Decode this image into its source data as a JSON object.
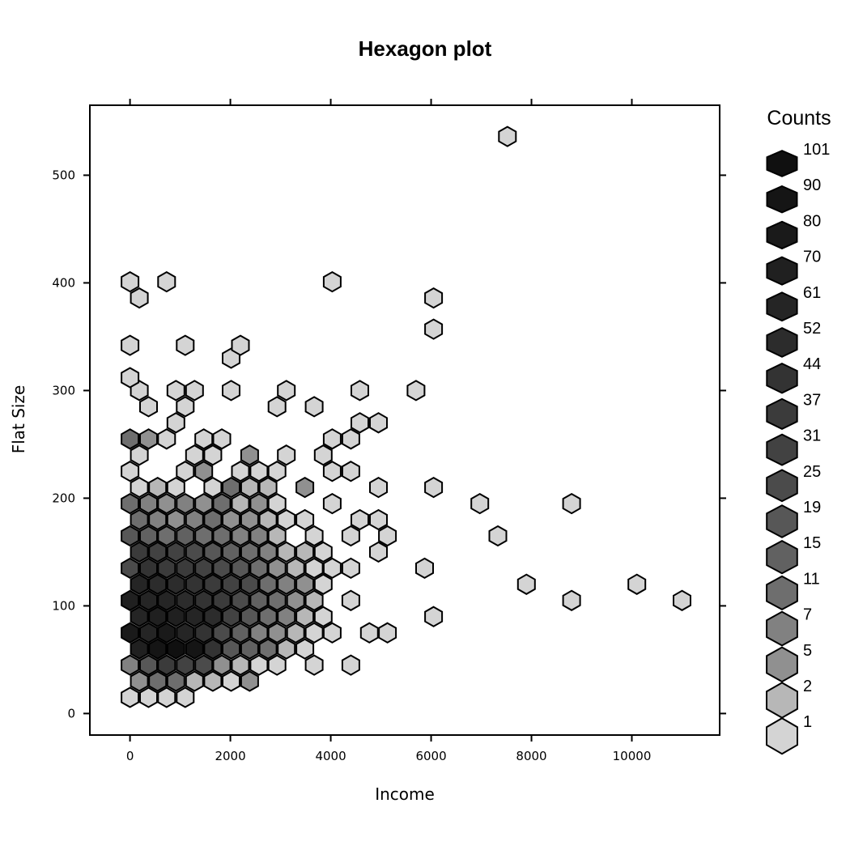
{
  "chart_data": {
    "type": "hexbin",
    "title": "Hexagon plot",
    "xlabel": "Income",
    "ylabel": "Flat Size",
    "xlim": [
      -800,
      11750
    ],
    "ylim": [
      -20,
      565
    ],
    "x_ticks": [
      0,
      2000,
      4000,
      6000,
      8000,
      10000
    ],
    "y_ticks": [
      0,
      100,
      200,
      300,
      400,
      500
    ],
    "x_tick_labels": [
      "0",
      "2000",
      "4000",
      "6000",
      "8000",
      "10000"
    ],
    "y_tick_labels": [
      "0",
      "100",
      "200",
      "300",
      "400",
      "500"
    ],
    "legend": {
      "title": "Counts",
      "placement": "right",
      "levels": [
        "101",
        "90",
        "80",
        "70",
        "61",
        "52",
        "44",
        "37",
        "31",
        "25",
        "19",
        "15",
        "11",
        "7",
        "5",
        "2",
        "1"
      ]
    },
    "cells": [
      [
        0,
        15,
        1
      ],
      [
        370,
        15,
        1
      ],
      [
        730,
        15,
        1
      ],
      [
        1100,
        15,
        1
      ],
      [
        0,
        45,
        7
      ],
      [
        370,
        45,
        19
      ],
      [
        730,
        45,
        37
      ],
      [
        1100,
        45,
        31
      ],
      [
        1470,
        45,
        25
      ],
      [
        1830,
        45,
        5
      ],
      [
        2200,
        45,
        2
      ],
      [
        2570,
        45,
        1
      ],
      [
        2930,
        45,
        1
      ],
      [
        3670,
        45,
        1
      ],
      [
        4400,
        45,
        1
      ],
      [
        185,
        30,
        5
      ],
      [
        550,
        30,
        11
      ],
      [
        915,
        30,
        11
      ],
      [
        1285,
        30,
        2
      ],
      [
        1650,
        30,
        2
      ],
      [
        2015,
        30,
        1
      ],
      [
        2385,
        30,
        5
      ],
      [
        185,
        60,
        70
      ],
      [
        550,
        60,
        90
      ],
      [
        915,
        60,
        101
      ],
      [
        1285,
        60,
        90
      ],
      [
        1650,
        60,
        44
      ],
      [
        2015,
        60,
        19
      ],
      [
        2385,
        60,
        15
      ],
      [
        2750,
        60,
        11
      ],
      [
        3115,
        60,
        2
      ],
      [
        3485,
        60,
        1
      ],
      [
        0,
        75,
        80
      ],
      [
        370,
        75,
        61
      ],
      [
        730,
        75,
        80
      ],
      [
        1100,
        75,
        61
      ],
      [
        1470,
        75,
        44
      ],
      [
        1830,
        75,
        25
      ],
      [
        2200,
        75,
        15
      ],
      [
        2570,
        75,
        7
      ],
      [
        2930,
        75,
        5
      ],
      [
        3300,
        75,
        2
      ],
      [
        3670,
        75,
        1
      ],
      [
        4030,
        75,
        1
      ],
      [
        4770,
        75,
        1
      ],
      [
        5130,
        75,
        1
      ],
      [
        185,
        90,
        61
      ],
      [
        550,
        90,
        70
      ],
      [
        915,
        90,
        70
      ],
      [
        1285,
        90,
        61
      ],
      [
        1650,
        90,
        52
      ],
      [
        2015,
        90,
        31
      ],
      [
        2385,
        90,
        19
      ],
      [
        2750,
        90,
        11
      ],
      [
        3115,
        90,
        7
      ],
      [
        3485,
        90,
        2
      ],
      [
        3850,
        90,
        1
      ],
      [
        6050,
        90,
        1
      ],
      [
        0,
        105,
        70
      ],
      [
        370,
        105,
        61
      ],
      [
        730,
        105,
        61
      ],
      [
        1100,
        105,
        52
      ],
      [
        1470,
        105,
        44
      ],
      [
        1830,
        105,
        37
      ],
      [
        2200,
        105,
        25
      ],
      [
        2570,
        105,
        15
      ],
      [
        2930,
        105,
        11
      ],
      [
        3300,
        105,
        5
      ],
      [
        3670,
        105,
        2
      ],
      [
        4400,
        105,
        1
      ],
      [
        8800,
        105,
        1
      ],
      [
        11000,
        105,
        1
      ],
      [
        185,
        120,
        61
      ],
      [
        550,
        120,
        52
      ],
      [
        915,
        120,
        52
      ],
      [
        1285,
        120,
        44
      ],
      [
        1650,
        120,
        37
      ],
      [
        2015,
        120,
        31
      ],
      [
        2385,
        120,
        25
      ],
      [
        2750,
        120,
        11
      ],
      [
        3115,
        120,
        7
      ],
      [
        3485,
        120,
        5
      ],
      [
        3850,
        120,
        1
      ],
      [
        7900,
        120,
        1
      ],
      [
        10100,
        120,
        1
      ],
      [
        0,
        135,
        25
      ],
      [
        370,
        135,
        44
      ],
      [
        730,
        135,
        37
      ],
      [
        1100,
        135,
        37
      ],
      [
        1470,
        135,
        31
      ],
      [
        1830,
        135,
        25
      ],
      [
        2200,
        135,
        19
      ],
      [
        2570,
        135,
        11
      ],
      [
        2930,
        135,
        5
      ],
      [
        3300,
        135,
        2
      ],
      [
        3670,
        135,
        1
      ],
      [
        4030,
        135,
        1
      ],
      [
        4400,
        135,
        1
      ],
      [
        5870,
        135,
        1
      ],
      [
        185,
        150,
        37
      ],
      [
        550,
        150,
        31
      ],
      [
        915,
        150,
        31
      ],
      [
        1285,
        150,
        25
      ],
      [
        1650,
        150,
        19
      ],
      [
        2015,
        150,
        15
      ],
      [
        2385,
        150,
        11
      ],
      [
        2750,
        150,
        7
      ],
      [
        3115,
        150,
        2
      ],
      [
        3485,
        150,
        2
      ],
      [
        3850,
        150,
        1
      ],
      [
        4950,
        150,
        1
      ],
      [
        0,
        165,
        19
      ],
      [
        370,
        165,
        15
      ],
      [
        730,
        165,
        11
      ],
      [
        1100,
        165,
        15
      ],
      [
        1470,
        165,
        11
      ],
      [
        1830,
        165,
        11
      ],
      [
        2200,
        165,
        7
      ],
      [
        2570,
        165,
        7
      ],
      [
        2930,
        165,
        2
      ],
      [
        3670,
        165,
        1
      ],
      [
        4400,
        165,
        1
      ],
      [
        5130,
        165,
        1
      ],
      [
        7330,
        165,
        1
      ],
      [
        185,
        180,
        11
      ],
      [
        550,
        180,
        7
      ],
      [
        915,
        180,
        5
      ],
      [
        1285,
        180,
        7
      ],
      [
        1650,
        180,
        11
      ],
      [
        2015,
        180,
        5
      ],
      [
        2385,
        180,
        5
      ],
      [
        2750,
        180,
        2
      ],
      [
        3115,
        180,
        1
      ],
      [
        3485,
        180,
        1
      ],
      [
        4580,
        180,
        1
      ],
      [
        4950,
        180,
        1
      ],
      [
        0,
        195,
        11
      ],
      [
        370,
        195,
        7
      ],
      [
        730,
        195,
        5
      ],
      [
        1100,
        195,
        7
      ],
      [
        1470,
        195,
        5
      ],
      [
        1830,
        195,
        11
      ],
      [
        2200,
        195,
        2
      ],
      [
        2570,
        195,
        5
      ],
      [
        2930,
        195,
        1
      ],
      [
        4030,
        195,
        1
      ],
      [
        6970,
        195,
        1
      ],
      [
        8800,
        195,
        1
      ],
      [
        185,
        210,
        1
      ],
      [
        550,
        210,
        2
      ],
      [
        915,
        210,
        1
      ],
      [
        1650,
        210,
        1
      ],
      [
        2015,
        210,
        11
      ],
      [
        2385,
        210,
        2
      ],
      [
        2750,
        210,
        2
      ],
      [
        3485,
        210,
        5
      ],
      [
        4950,
        210,
        1
      ],
      [
        6050,
        210,
        1
      ],
      [
        0,
        225,
        1
      ],
      [
        1100,
        225,
        1
      ],
      [
        1470,
        225,
        5
      ],
      [
        2200,
        225,
        1
      ],
      [
        2570,
        225,
        1
      ],
      [
        2930,
        225,
        1
      ],
      [
        4030,
        225,
        1
      ],
      [
        4400,
        225,
        1
      ],
      [
        185,
        240,
        1
      ],
      [
        1285,
        240,
        1
      ],
      [
        1650,
        240,
        1
      ],
      [
        2385,
        240,
        5
      ],
      [
        3115,
        240,
        1
      ],
      [
        3850,
        240,
        1
      ],
      [
        0,
        255,
        11
      ],
      [
        370,
        255,
        5
      ],
      [
        730,
        255,
        1
      ],
      [
        1470,
        255,
        1
      ],
      [
        1830,
        255,
        1
      ],
      [
        4030,
        255,
        1
      ],
      [
        4400,
        255,
        1
      ],
      [
        915,
        270,
        1
      ],
      [
        4580,
        270,
        1
      ],
      [
        4950,
        270,
        1
      ],
      [
        370,
        285,
        1
      ],
      [
        1100,
        285,
        1
      ],
      [
        2930,
        285,
        1
      ],
      [
        3670,
        285,
        1
      ],
      [
        185,
        300,
        1
      ],
      [
        915,
        300,
        1
      ],
      [
        1285,
        300,
        1
      ],
      [
        2015,
        300,
        1
      ],
      [
        3115,
        300,
        1
      ],
      [
        4580,
        300,
        1
      ],
      [
        5700,
        300,
        1
      ],
      [
        0,
        312,
        1
      ],
      [
        2015,
        330,
        1
      ],
      [
        0,
        342,
        1
      ],
      [
        1100,
        342,
        1
      ],
      [
        2200,
        342,
        1
      ],
      [
        6050,
        357,
        1
      ],
      [
        185,
        386,
        1
      ],
      [
        6050,
        386,
        1
      ],
      [
        0,
        401,
        1
      ],
      [
        730,
        401,
        1
      ],
      [
        4030,
        401,
        1
      ],
      [
        7520,
        536,
        1
      ]
    ]
  }
}
